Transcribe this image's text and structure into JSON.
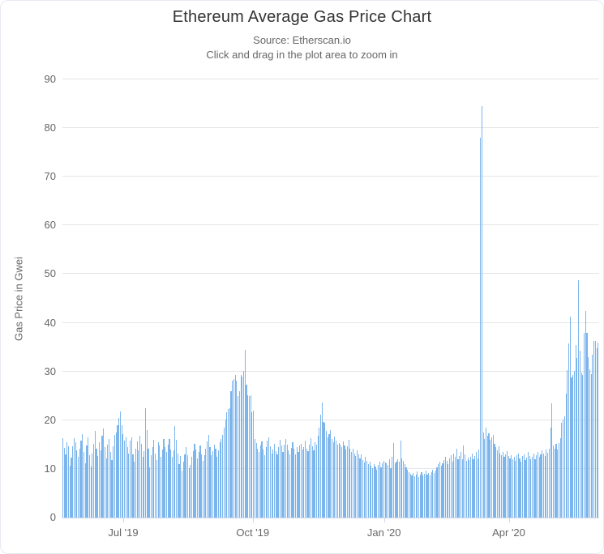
{
  "chart": {
    "title": "Ethereum Average Gas Price Chart",
    "subtitle_source": "Source: Etherscan.io",
    "subtitle_hint": "Click and drag in the plot area to zoom in",
    "y_axis_title": "Gas Price in Gwei"
  },
  "colors": {
    "bar": "#7cb5ec",
    "grid": "#e6e6e6",
    "axis_line": "#ccd6eb",
    "label_text": "#666666",
    "title_text": "#333333"
  },
  "chart_data": {
    "type": "bar",
    "title": "Ethereum Average Gas Price Chart",
    "subtitle": "Source: Etherscan.io",
    "xlabel": "",
    "ylabel": "Gas Price in Gwei",
    "ylim": [
      0,
      90
    ],
    "y_ticks": [
      0,
      10,
      20,
      30,
      40,
      50,
      60,
      70,
      80,
      90
    ],
    "grid": true,
    "legend": false,
    "x_ticks": [
      {
        "label": "Jul '19",
        "day_index": 43.4
      },
      {
        "label": "Oct '19",
        "day_index": 135.8
      },
      {
        "label": "Jan '20",
        "day_index": 229.5
      },
      {
        "label": "Apr '20",
        "day_index": 318.5
      }
    ],
    "total_days": 383,
    "values": [
      16.3,
      14.3,
      13.0,
      15.5,
      14.7,
      10.7,
      12.3,
      14.7,
      16.3,
      15.5,
      13.8,
      12.5,
      14.2,
      15.8,
      17.2,
      13.5,
      11.2,
      14.8,
      16.5,
      12.8,
      10.5,
      13.2,
      15.2,
      17.8,
      14.2,
      12.6,
      15.5,
      13.8,
      16.8,
      18.3,
      14.5,
      12.2,
      15.0,
      16.2,
      13.4,
      11.8,
      14.6,
      17.0,
      17.5,
      19.0,
      20.5,
      21.8,
      19.0,
      17.2,
      15.8,
      16.5,
      14.5,
      13.2,
      15.8,
      16.4,
      12.9,
      11.5,
      14.2,
      15.6,
      13.8,
      16.8,
      15.2,
      12.4,
      13.6,
      22.5,
      18.0,
      14.2,
      10.3,
      12.8,
      14.5,
      16.0,
      13.2,
      11.8,
      15.4,
      14.8,
      12.5,
      13.9,
      16.2,
      14.4,
      13.5,
      15.0,
      16.2,
      14.0,
      12.5,
      13.8,
      18.8,
      16.0,
      13.2,
      11.0,
      12.6,
      9.6,
      11.4,
      13.0,
      14.5,
      12.8,
      10.2,
      10.8,
      12.4,
      13.6,
      15.2,
      14.0,
      12.2,
      13.4,
      14.8,
      13.0,
      11.6,
      12.8,
      14.2,
      15.6,
      16.9,
      14.5,
      12.8,
      13.6,
      15.0,
      14.2,
      12.5,
      13.8,
      15.5,
      16.2,
      17.0,
      18.5,
      20.2,
      21.6,
      22.3,
      22.5,
      25.9,
      28.1,
      28.4,
      29.3,
      28.1,
      25.0,
      26.0,
      29.2,
      28.9,
      30.1,
      34.4,
      27.3,
      25.2,
      25.0,
      25.2,
      21.6,
      21.9,
      16.1,
      15.3,
      14.2,
      13.5,
      14.8,
      15.6,
      13.9,
      12.8,
      14.4,
      15.8,
      16.5,
      14.6,
      13.2,
      14.0,
      15.2,
      13.6,
      12.9,
      14.5,
      15.9,
      14.8,
      13.4,
      14.9,
      16.2,
      15.0,
      13.8,
      12.9,
      14.3,
      15.5,
      14.1,
      13.0,
      14.4,
      13.5,
      14.8,
      15.2,
      13.9,
      14.5,
      15.8,
      14.2,
      13.6,
      15.0,
      16.3,
      14.7,
      13.8,
      15.5,
      14.9,
      16.8,
      18.5,
      21.2,
      23.6,
      19.7,
      19.5,
      17.8,
      16.5,
      17.2,
      18.0,
      16.2,
      15.5,
      16.6,
      15.8,
      14.9,
      15.3,
      15.0,
      14.4,
      15.6,
      14.8,
      13.9,
      14.6,
      15.9,
      14.2,
      13.5,
      14.1,
      13.2,
      12.6,
      13.8,
      13.0,
      12.2,
      12.9,
      11.8,
      11.3,
      12.5,
      11.6,
      10.9,
      11.4,
      10.6,
      10.2,
      11.0,
      10.5,
      9.9,
      10.8,
      11.5,
      10.3,
      11.2,
      11.6,
      11.3,
      11.1,
      10.8,
      11.9,
      10.2,
      12.4,
      15.3,
      11.1,
      11.5,
      12.0,
      11.4,
      15.8,
      12.2,
      11.6,
      10.9,
      10.4,
      9.8,
      9.4,
      9.0,
      8.7,
      9.2,
      8.5,
      8.9,
      9.5,
      8.3,
      8.8,
      9.3,
      8.6,
      9.0,
      9.6,
      8.9,
      9.2,
      8.7,
      9.4,
      9.8,
      9.1,
      9.6,
      10.4,
      10.9,
      11.5,
      10.7,
      11.2,
      11.8,
      12.4,
      11.6,
      10.9,
      12.2,
      12.8,
      11.5,
      13.2,
      12.5,
      14.2,
      11.9,
      12.6,
      13.5,
      12.0,
      14.8,
      12.9,
      11.7,
      12.3,
      11.8,
      12.5,
      13.1,
      11.9,
      12.7,
      13.4,
      12.2,
      14.0,
      78.0,
      84.5,
      17.5,
      16.2,
      18.4,
      16.8,
      17.3,
      15.9,
      16.5,
      17.0,
      15.2,
      14.5,
      13.8,
      14.6,
      13.2,
      12.8,
      13.5,
      12.4,
      12.9,
      13.6,
      12.6,
      12.2,
      12.8,
      11.9,
      12.4,
      11.6,
      12.8,
      13.2,
      12.1,
      11.5,
      12.6,
      13.0,
      11.8,
      12.3,
      13.4,
      12.7,
      11.9,
      12.5,
      13.1,
      12.0,
      12.8,
      13.5,
      12.4,
      13.0,
      13.8,
      13.2,
      12.6,
      13.9,
      13.3,
      14.1,
      18.5,
      23.5,
      14.8,
      14.2,
      15.1,
      14.0,
      15.3,
      16.3,
      19.5,
      20.1,
      20.8,
      25.4,
      30.2,
      35.8,
      41.2,
      28.7,
      29.3,
      30.1,
      35.5,
      32.8,
      48.7,
      34.2,
      29.8,
      29.2,
      38.0,
      42.5,
      37.9,
      33.0,
      30.4,
      29.5,
      33.5,
      36.3,
      36.2,
      34.8,
      36.0
    ]
  }
}
